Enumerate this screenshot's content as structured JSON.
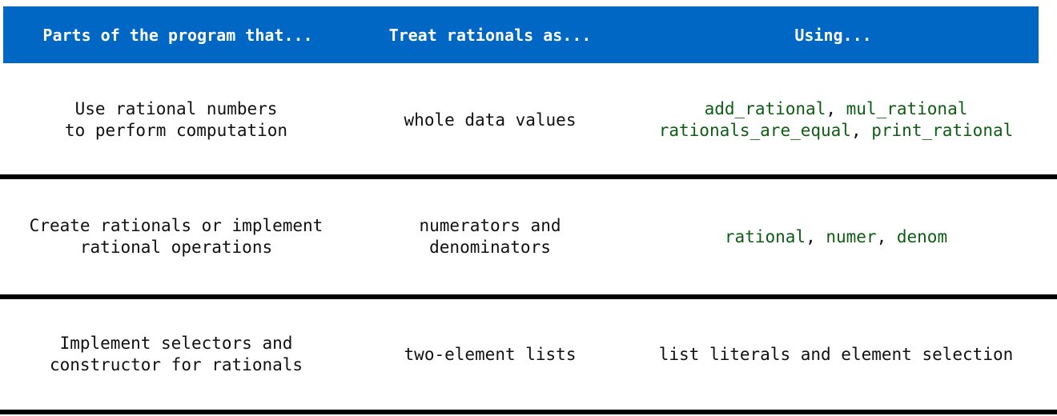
{
  "header": {
    "col1": "Parts of the program that...",
    "col2": "Treat rationals as...",
    "col3": "Using..."
  },
  "rows": [
    {
      "parts": [
        "Use rational numbers",
        "to perform computation"
      ],
      "treat": [
        "whole data values"
      ],
      "using": {
        "line1": [
          {
            "text": "add_rational",
            "code": true
          },
          {
            "text": ", ",
            "code": false
          },
          {
            "text": "mul_rational",
            "code": true
          }
        ],
        "line2": [
          {
            "text": "rationals_are_equal",
            "code": true
          },
          {
            "text": ", ",
            "code": false
          },
          {
            "text": "print_rational",
            "code": true
          }
        ]
      }
    },
    {
      "parts": [
        "Create rationals or implement",
        "rational operations"
      ],
      "treat": [
        "numerators and",
        "denominators"
      ],
      "using": {
        "line1": [
          {
            "text": "rational",
            "code": true
          },
          {
            "text": ", ",
            "code": false
          },
          {
            "text": "numer",
            "code": true
          },
          {
            "text": ", ",
            "code": false
          },
          {
            "text": "denom",
            "code": true
          }
        ]
      }
    },
    {
      "parts": [
        "Implement selectors and",
        "constructor for rationals"
      ],
      "treat": [
        "two-element lists"
      ],
      "using": {
        "line1": [
          {
            "text": "list literals and element selection",
            "code": false
          }
        ]
      }
    }
  ],
  "colors": {
    "header_bg": "#0067c4",
    "header_text": "#ffffff",
    "code_text": "#0d5e12",
    "divider": "#000000"
  }
}
